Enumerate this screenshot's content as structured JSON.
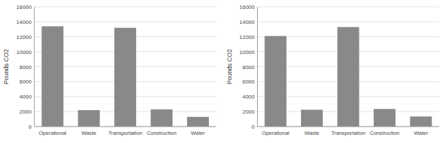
{
  "chart_data": [
    {
      "type": "bar",
      "categories": [
        "Operational",
        "Waste",
        "Transportation",
        "Construction",
        "Water"
      ],
      "values": [
        13400,
        2200,
        13200,
        2300,
        1300
      ],
      "color": "#898989",
      "ylabel": "Pounds CO2",
      "ylim": [
        0,
        16000
      ],
      "yticks": [
        0,
        2000,
        4000,
        6000,
        8000,
        10000,
        12000,
        14000,
        16000
      ],
      "grid": true
    },
    {
      "type": "bar",
      "categories": [
        "Operational",
        "Waste",
        "Transportation",
        "Construction",
        "Water"
      ],
      "values": [
        12100,
        2250,
        13300,
        2350,
        1350
      ],
      "color": "#898989",
      "ylabel": "Pounds CO2",
      "ylim": [
        0,
        16000
      ],
      "yticks": [
        0,
        2000,
        4000,
        6000,
        8000,
        10000,
        12000,
        14000,
        16000
      ],
      "grid": true
    }
  ]
}
